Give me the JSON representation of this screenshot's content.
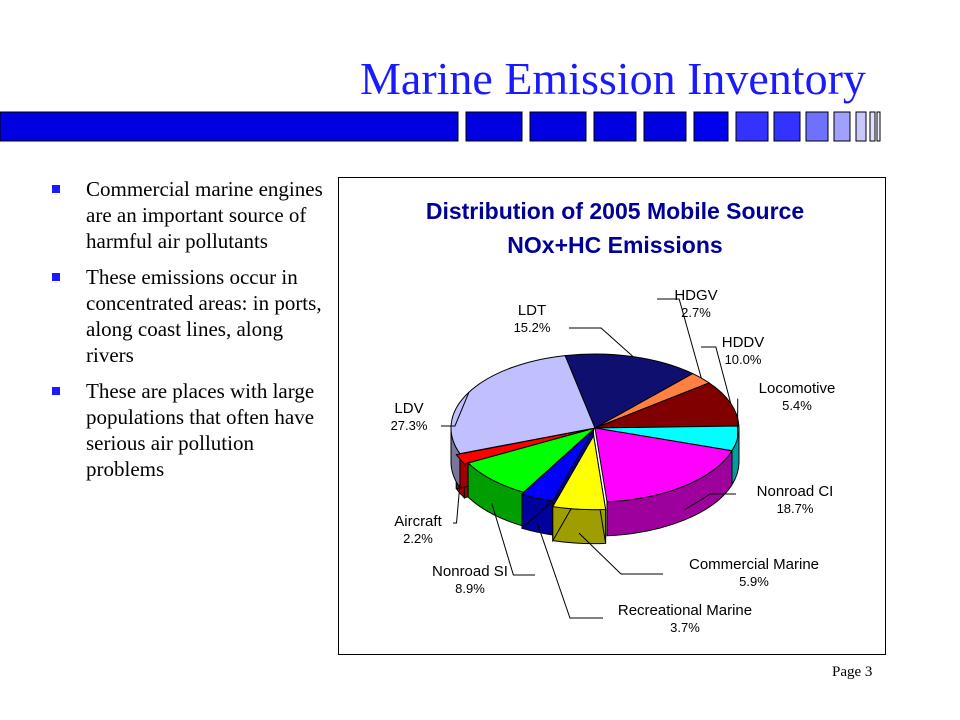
{
  "slide": {
    "title": "Marine Emission Inventory",
    "page_label": "Page 3",
    "bullets": [
      "Commercial marine engines are an important source of harmful air pollutants",
      "These emissions occur in concentrated areas:  in ports, along coast lines, along rivers",
      "These are places with large populations that often have serious air pollution problems"
    ],
    "colors": {
      "title": "#1a1aff",
      "bullet": "#1a1aff",
      "band": "#0000e0"
    }
  },
  "chart_data": {
    "type": "pie",
    "style": "3d-exploded",
    "title_line1": "Distribution of 2005 Mobile Source",
    "title_line2": "NOx+HC Emissions",
    "title_color": "#000099",
    "slices": [
      {
        "name": "LDT",
        "value": "15.2%",
        "pct": 15.2,
        "color": "#0f0f70"
      },
      {
        "name": "HDGV",
        "value": "2.7%",
        "pct": 2.7,
        "color": "#ff8040"
      },
      {
        "name": "HDDV",
        "value": "10.0%",
        "pct": 10.0,
        "color": "#800000"
      },
      {
        "name": "Locomotive",
        "value": "5.4%",
        "pct": 5.4,
        "color": "#00ffff"
      },
      {
        "name": "Nonroad CI",
        "value": "18.7%",
        "pct": 18.7,
        "color": "#ff00ff"
      },
      {
        "name": "Commercial Marine",
        "value": "5.9%",
        "pct": 5.9,
        "color": "#ffff00"
      },
      {
        "name": "Recreational Marine",
        "value": "3.7%",
        "pct": 3.7,
        "color": "#0000ff"
      },
      {
        "name": "Nonroad SI",
        "value": "8.9%",
        "pct": 8.9,
        "color": "#00ff00"
      },
      {
        "name": "Aircraft",
        "value": "2.2%",
        "pct": 2.2,
        "color": "#ff0000"
      },
      {
        "name": "LDV",
        "value": "27.3%",
        "pct": 27.3,
        "color": "#c0c0ff"
      }
    ]
  }
}
